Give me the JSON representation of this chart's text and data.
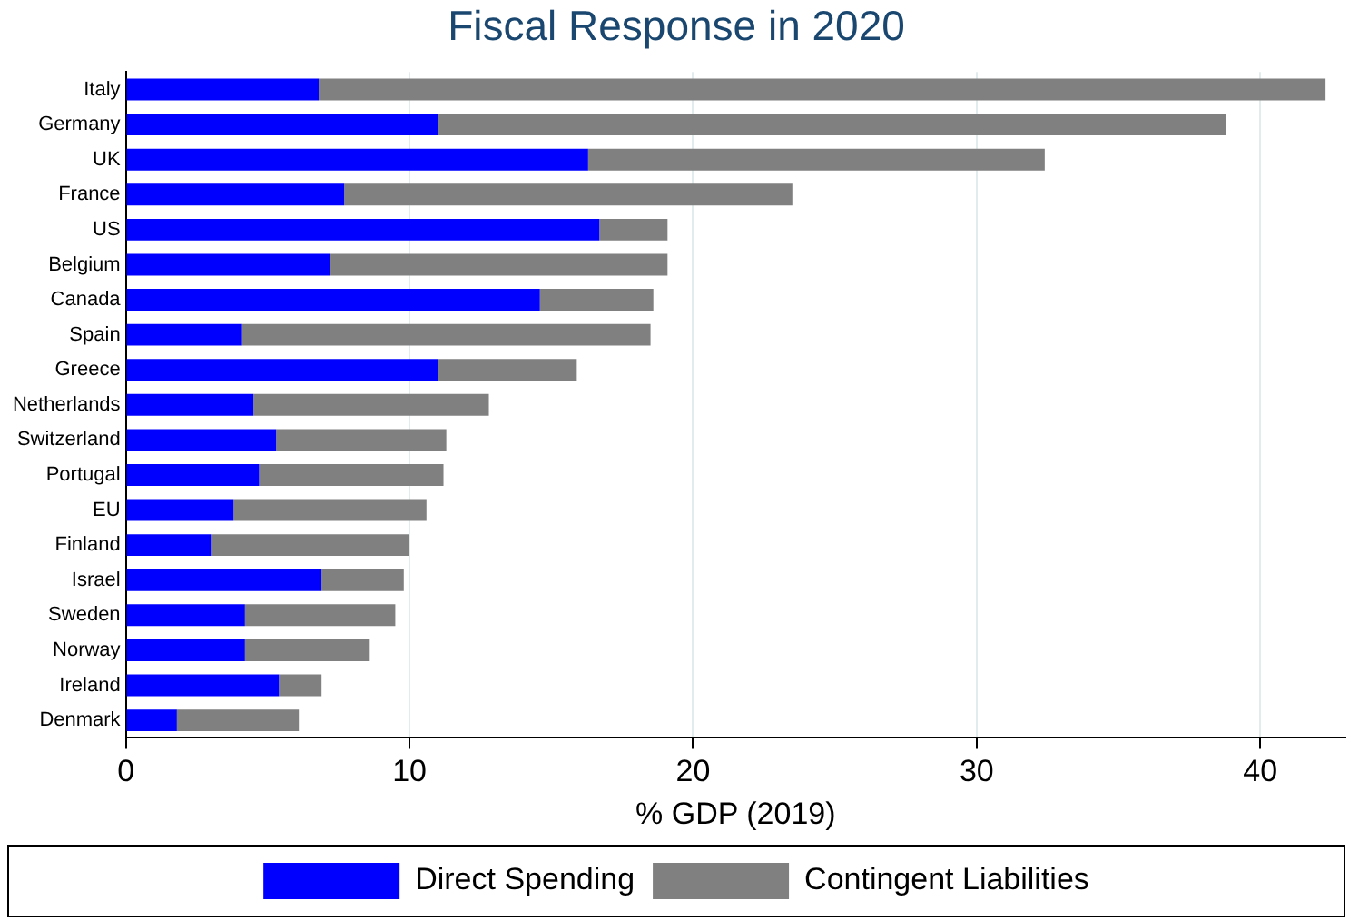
{
  "chart_data": {
    "type": "bar",
    "orientation": "horizontal",
    "stacked": true,
    "title": "Fiscal Response in 2020",
    "xlabel": "% GDP (2019)",
    "categories": [
      "Italy",
      "Germany",
      "UK",
      "France",
      "US",
      "Belgium",
      "Canada",
      "Spain",
      "Greece",
      "Netherlands",
      "Switzerland",
      "Portugal",
      "EU",
      "Finland",
      "Israel",
      "Sweden",
      "Norway",
      "Ireland",
      "Denmark"
    ],
    "series": [
      {
        "name": "Direct Spending",
        "color": "#0000ff",
        "values": [
          6.8,
          11.0,
          16.3,
          7.7,
          16.7,
          7.2,
          14.6,
          4.1,
          11.0,
          4.5,
          5.3,
          4.7,
          3.8,
          3.0,
          6.9,
          4.2,
          4.2,
          5.4,
          1.8
        ]
      },
      {
        "name": "Contingent Liabilities",
        "color": "#808080",
        "values": [
          35.5,
          27.8,
          16.1,
          15.8,
          2.4,
          11.9,
          4.0,
          14.4,
          4.9,
          8.3,
          6.0,
          6.5,
          6.8,
          7.0,
          2.9,
          5.3,
          4.4,
          1.5,
          4.3
        ]
      }
    ],
    "xlim": [
      0,
      43
    ],
    "xticks": [
      0,
      10,
      20,
      30,
      40
    ],
    "grid": "x",
    "legend": "bottom"
  }
}
